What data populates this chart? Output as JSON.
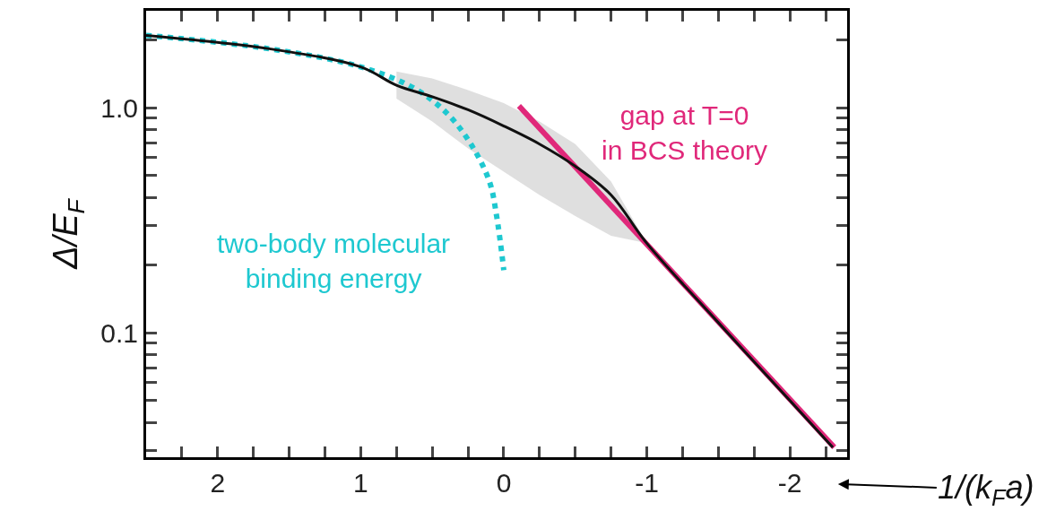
{
  "chart_data": {
    "type": "line",
    "xlabel": "1/(k$_{F}$a)",
    "ylabel": "Δ/E$_{F}$",
    "log": "y",
    "grid": false,
    "legend": false,
    "marker": "none",
    "xlim": [
      2.5,
      -2.4
    ],
    "xticks": [
      {
        "value": 2.25,
        "label": null
      },
      2,
      {
        "value": 1.75,
        "label": null
      },
      {
        "value": 1.5,
        "label": null
      },
      {
        "value": 1.25,
        "label": null
      },
      1,
      {
        "value": 0.75,
        "label": null
      },
      {
        "value": 0.5,
        "label": null
      },
      {
        "value": 0.25,
        "label": null
      },
      0,
      {
        "value": -0.25,
        "label": null
      },
      {
        "value": -0.5,
        "label": null
      },
      {
        "value": -0.75,
        "label": null
      },
      -1,
      {
        "value": -1.25,
        "label": null
      },
      {
        "value": -1.5,
        "label": null
      },
      {
        "value": -1.75,
        "label": null
      },
      -2,
      {
        "value": -2.25,
        "label": null
      }
    ],
    "ylim": [
      0.028,
      2.7
    ],
    "yticks": [
      {
        "value": 0.03,
        "label": null
      },
      {
        "value": 0.04,
        "label": null
      },
      {
        "value": 0.05,
        "label": null
      },
      {
        "value": 0.06,
        "label": null
      },
      {
        "value": 0.07,
        "label": null
      },
      {
        "value": 0.08,
        "label": null
      },
      {
        "value": 0.09,
        "label": null
      },
      0.1,
      {
        "value": 0.2,
        "label": null
      },
      {
        "value": 0.3,
        "label": null
      },
      {
        "value": 0.4,
        "label": null
      },
      {
        "value": 0.5,
        "label": null
      },
      {
        "value": 0.6,
        "label": null
      },
      {
        "value": 0.7,
        "label": null
      },
      {
        "value": 0.8,
        "label": null
      },
      {
        "value": 0.9,
        "label": null
      },
      {
        "value": 1,
        "label": "1.0"
      },
      {
        "value": 2,
        "label": null
      }
    ],
    "series": [
      {
        "color": "#111111",
        "line_style": "solid",
        "x": [
          2.5,
          1.64,
          1,
          0.75,
          0.5,
          0.25,
          0,
          -0.25,
          -0.5,
          -0.75,
          -1,
          -1.5,
          -2,
          -2.3
        ],
        "values": [
          2.1,
          1.83,
          1.52,
          1.26,
          1.12,
          0.98,
          0.83,
          0.69,
          0.55,
          0.41,
          0.25,
          0.111,
          0.05,
          0.031
        ],
        "lower": [
          null,
          null,
          null,
          1.1,
          0.87,
          0.66,
          0.52,
          0.41,
          0.33,
          0.27,
          0.25,
          null,
          null,
          null
        ],
        "upper": [
          null,
          null,
          null,
          1.45,
          1.35,
          1.2,
          1.05,
          0.87,
          0.69,
          0.47,
          0.25,
          null,
          null,
          null
        ]
      },
      {
        "name": "two-body molecular binding energy",
        "color": "#1ec8d0",
        "line_style": "dotted",
        "x": [
          2.5,
          1.64,
          1,
          0.625,
          0.4,
          0.23,
          0.1,
          0.05,
          0
        ],
        "values": [
          2.1,
          1.83,
          1.52,
          1.22,
          0.95,
          0.69,
          0.47,
          0.33,
          0.19
        ]
      },
      {
        "name": "gap at T=0 in BCS theory",
        "color": "#e0287a",
        "line_style": "solid",
        "x": [
          -0.106,
          -2.31
        ],
        "values": [
          1.02,
          0.031
        ]
      }
    ]
  }
}
